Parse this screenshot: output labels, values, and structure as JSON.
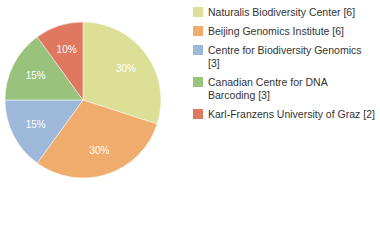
{
  "chart_data": {
    "type": "pie",
    "categories": [
      "Naturalis Biodiversity Center [6]",
      "Beijing Genomics Institute [6]",
      "Centre for Biodiversity Genomics [3]",
      "Canadian Centre for DNA Barcoding [3]",
      "Karl-Franzens University of Graz [2]"
    ],
    "values": [
      30,
      30,
      15,
      15,
      10
    ],
    "value_labels": [
      "30%",
      "30%",
      "15%",
      "15%",
      "10%"
    ],
    "colors": [
      "#dcdf96",
      "#f0ac6c",
      "#9db8d9",
      "#99c27c",
      "#e07860"
    ],
    "data_labels": true,
    "legend": "top-right"
  }
}
